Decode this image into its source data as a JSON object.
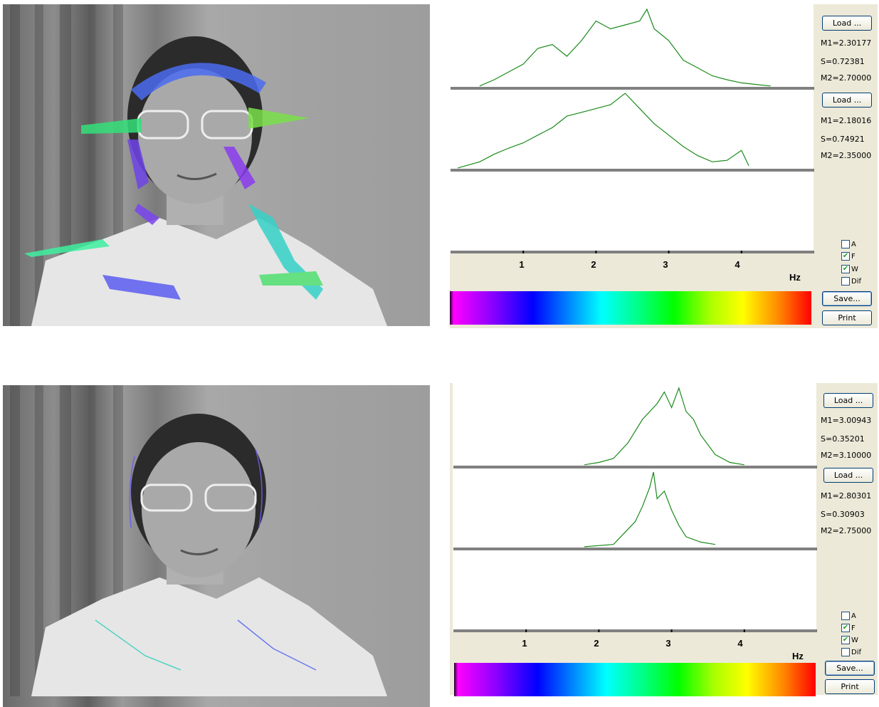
{
  "panels": [
    {
      "buttons": {
        "load1": "Load ...",
        "load2": "Load ...",
        "save": "Save...",
        "print": "Print"
      },
      "stats1": {
        "m1": "M1=2.30177",
        "s": "S=0.72381",
        "m2": "M2=2.70000"
      },
      "stats2": {
        "m1": "M1=2.18016",
        "s": "S=0.74921",
        "m2": "M2=2.35000"
      },
      "axis": {
        "ticks": [
          "1",
          "2",
          "3",
          "4"
        ],
        "unit": "Hz"
      },
      "checkboxes": [
        {
          "label": "A",
          "checked": false
        },
        {
          "label": "F",
          "checked": true
        },
        {
          "label": "W",
          "checked": true
        },
        {
          "label": "Dif",
          "checked": false
        }
      ]
    },
    {
      "buttons": {
        "load1": "Load ...",
        "load2": "Load ...",
        "save": "Save...",
        "print": "Print"
      },
      "stats1": {
        "m1": "M1=3.00943",
        "s": "S=0.35201",
        "m2": "M2=3.10000"
      },
      "stats2": {
        "m1": "M1=2.80301",
        "s": "S=0.30903",
        "m2": "M2=2.75000"
      },
      "axis": {
        "ticks": [
          "1",
          "2",
          "3",
          "4"
        ],
        "unit": "Hz"
      },
      "checkboxes": [
        {
          "label": "A",
          "checked": false
        },
        {
          "label": "F",
          "checked": true
        },
        {
          "label": "W",
          "checked": true
        },
        {
          "label": "Dif",
          "checked": false
        }
      ]
    }
  ],
  "colors": {
    "curve": "#1a8a1a",
    "panel_bg": "#ece9d8",
    "button_border": "#003c74"
  },
  "chart_data": [
    {
      "type": "line",
      "x_unit": "Hz",
      "xlim": [
        0,
        5
      ],
      "series": [
        {
          "x": [
            0.4,
            0.6,
            0.8,
            1.0,
            1.2,
            1.4,
            1.6,
            1.8,
            2.0,
            2.2,
            2.4,
            2.6,
            2.7,
            2.8,
            3.0,
            3.2,
            3.4,
            3.6,
            3.8,
            4.0,
            4.2,
            4.4
          ],
          "y": [
            0.02,
            0.1,
            0.2,
            0.3,
            0.5,
            0.55,
            0.4,
            0.6,
            0.85,
            0.75,
            0.8,
            0.85,
            1.0,
            0.75,
            0.6,
            0.35,
            0.25,
            0.15,
            0.1,
            0.06,
            0.04,
            0.02
          ]
        },
        {
          "x": [
            0.1,
            0.4,
            0.6,
            0.8,
            1.0,
            1.2,
            1.4,
            1.6,
            1.8,
            2.0,
            2.2,
            2.4,
            2.6,
            2.8,
            3.0,
            3.2,
            3.4,
            3.6,
            3.8,
            4.0,
            4.1
          ],
          "y": [
            0.02,
            0.1,
            0.2,
            0.28,
            0.35,
            0.45,
            0.55,
            0.7,
            0.75,
            0.8,
            0.85,
            1.0,
            0.8,
            0.6,
            0.45,
            0.3,
            0.18,
            0.1,
            0.12,
            0.25,
            0.05
          ]
        }
      ]
    },
    {
      "type": "line",
      "x_unit": "Hz",
      "xlim": [
        0,
        5
      ],
      "series": [
        {
          "x": [
            1.8,
            2.0,
            2.2,
            2.4,
            2.6,
            2.8,
            2.9,
            3.0,
            3.1,
            3.2,
            3.3,
            3.4,
            3.6,
            3.8,
            4.0
          ],
          "y": [
            0.02,
            0.05,
            0.1,
            0.3,
            0.6,
            0.8,
            0.95,
            0.75,
            1.0,
            0.7,
            0.6,
            0.4,
            0.15,
            0.05,
            0.02
          ]
        },
        {
          "x": [
            1.8,
            2.2,
            2.4,
            2.5,
            2.6,
            2.7,
            2.75,
            2.8,
            2.9,
            3.0,
            3.1,
            3.2,
            3.4,
            3.6
          ],
          "y": [
            0.02,
            0.05,
            0.25,
            0.35,
            0.55,
            0.8,
            1.0,
            0.65,
            0.75,
            0.5,
            0.3,
            0.15,
            0.08,
            0.05
          ]
        }
      ]
    }
  ]
}
